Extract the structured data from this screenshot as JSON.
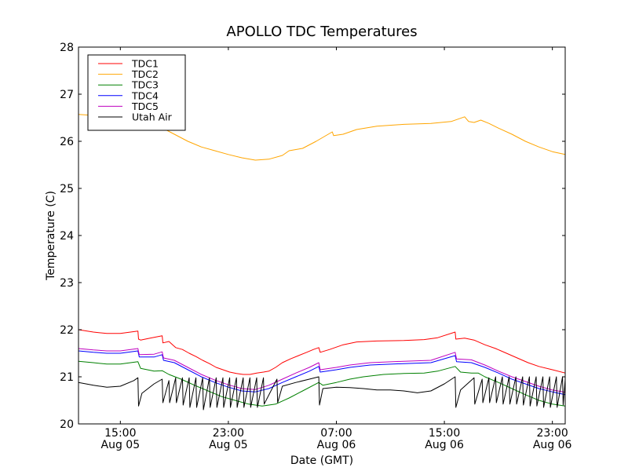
{
  "chart_data": {
    "type": "line",
    "title": "APOLLO TDC Temperatures",
    "xlabel": "Date (GMT)",
    "ylabel": "Temperature (C)",
    "x_units": "hours since 12:00 Aug 05 (GMT)",
    "xlim": [
      -0.1,
      35.95
    ],
    "ylim": [
      20,
      28
    ],
    "yticks": [
      20,
      21,
      22,
      23,
      24,
      25,
      26,
      27,
      28
    ],
    "xticks": [
      {
        "x": 3,
        "time": "15:00",
        "date": "Aug 05"
      },
      {
        "x": 11,
        "time": "23:00",
        "date": "Aug 05"
      },
      {
        "x": 19,
        "time": "07:00",
        "date": "Aug 06"
      },
      {
        "x": 27,
        "time": "15:00",
        "date": "Aug 06"
      },
      {
        "x": 35,
        "time": "23:00",
        "date": "Aug 06"
      }
    ],
    "grid": false,
    "legend_position": "top-left",
    "series": [
      {
        "name": "TDC1",
        "color": "#ff0000",
        "points": [
          [
            -0.1,
            22.0
          ],
          [
            1,
            21.95
          ],
          [
            2,
            21.92
          ],
          [
            3,
            21.92
          ],
          [
            4.3,
            21.97
          ],
          [
            4.35,
            21.8
          ],
          [
            4.5,
            21.78
          ],
          [
            5.2,
            21.82
          ],
          [
            6.1,
            21.87
          ],
          [
            6.15,
            21.72
          ],
          [
            6.6,
            21.75
          ],
          [
            7.1,
            21.62
          ],
          [
            7.6,
            21.58
          ],
          [
            8.1,
            21.5
          ],
          [
            8.6,
            21.43
          ],
          [
            9.1,
            21.35
          ],
          [
            9.6,
            21.28
          ],
          [
            10.1,
            21.2
          ],
          [
            10.6,
            21.15
          ],
          [
            11.1,
            21.1
          ],
          [
            11.6,
            21.07
          ],
          [
            12.1,
            21.05
          ],
          [
            12.6,
            21.05
          ],
          [
            13.1,
            21.08
          ],
          [
            13.6,
            21.1
          ],
          [
            14.0,
            21.12
          ],
          [
            14.5,
            21.2
          ],
          [
            15.0,
            21.3
          ],
          [
            15.6,
            21.38
          ],
          [
            16.2,
            21.45
          ],
          [
            16.8,
            21.52
          ],
          [
            17.3,
            21.58
          ],
          [
            17.7,
            21.62
          ],
          [
            17.8,
            21.52
          ],
          [
            18.5,
            21.58
          ],
          [
            19.5,
            21.68
          ],
          [
            20.5,
            21.74
          ],
          [
            22,
            21.76
          ],
          [
            24,
            21.77
          ],
          [
            25.5,
            21.79
          ],
          [
            26.5,
            21.83
          ],
          [
            27.8,
            21.95
          ],
          [
            27.85,
            21.8
          ],
          [
            28.5,
            21.82
          ],
          [
            29.2,
            21.78
          ],
          [
            30,
            21.68
          ],
          [
            30.8,
            21.6
          ],
          [
            31.6,
            21.5
          ],
          [
            32.4,
            21.4
          ],
          [
            33.2,
            21.3
          ],
          [
            34,
            21.22
          ],
          [
            35,
            21.15
          ],
          [
            35.95,
            21.08
          ]
        ]
      },
      {
        "name": "TDC2",
        "color": "#ffa500",
        "points": [
          [
            -0.1,
            26.57
          ],
          [
            1,
            26.55
          ],
          [
            2,
            26.5
          ],
          [
            3,
            26.45
          ],
          [
            4,
            26.4
          ],
          [
            5,
            26.38
          ],
          [
            6,
            26.3
          ],
          [
            7,
            26.15
          ],
          [
            8,
            26.0
          ],
          [
            9,
            25.88
          ],
          [
            10,
            25.8
          ],
          [
            11,
            25.72
          ],
          [
            12,
            25.65
          ],
          [
            13,
            25.6
          ],
          [
            14,
            25.62
          ],
          [
            15,
            25.7
          ],
          [
            15.5,
            25.8
          ],
          [
            16.5,
            25.85
          ],
          [
            17.5,
            26.0
          ],
          [
            18.7,
            26.2
          ],
          [
            18.8,
            26.12
          ],
          [
            19.5,
            26.15
          ],
          [
            20.5,
            26.25
          ],
          [
            22,
            26.32
          ],
          [
            24,
            26.36
          ],
          [
            26,
            26.38
          ],
          [
            27.5,
            26.42
          ],
          [
            28.5,
            26.52
          ],
          [
            28.8,
            26.42
          ],
          [
            29.2,
            26.4
          ],
          [
            29.7,
            26.45
          ],
          [
            30.3,
            26.38
          ],
          [
            31,
            26.28
          ],
          [
            32,
            26.15
          ],
          [
            33,
            26.0
          ],
          [
            34,
            25.88
          ],
          [
            35,
            25.78
          ],
          [
            35.95,
            25.72
          ]
        ]
      },
      {
        "name": "TDC3",
        "color": "#008000",
        "points": [
          [
            -0.1,
            21.33
          ],
          [
            1,
            21.3
          ],
          [
            2,
            21.27
          ],
          [
            3,
            21.27
          ],
          [
            4.3,
            21.32
          ],
          [
            4.5,
            21.18
          ],
          [
            5.5,
            21.12
          ],
          [
            6.1,
            21.13
          ],
          [
            6.6,
            21.05
          ],
          [
            7.5,
            20.95
          ],
          [
            8.5,
            20.82
          ],
          [
            9.5,
            20.7
          ],
          [
            10.5,
            20.58
          ],
          [
            11.5,
            20.5
          ],
          [
            12.5,
            20.42
          ],
          [
            13.5,
            20.38
          ],
          [
            14.5,
            20.42
          ],
          [
            15.5,
            20.55
          ],
          [
            16.5,
            20.7
          ],
          [
            17.7,
            20.88
          ],
          [
            18,
            20.82
          ],
          [
            19,
            20.88
          ],
          [
            20,
            20.95
          ],
          [
            21,
            21.0
          ],
          [
            22.5,
            21.05
          ],
          [
            24,
            21.07
          ],
          [
            25.5,
            21.08
          ],
          [
            26.5,
            21.12
          ],
          [
            27.8,
            21.22
          ],
          [
            28.2,
            21.1
          ],
          [
            29,
            21.08
          ],
          [
            29.5,
            21.08
          ],
          [
            30,
            21.0
          ],
          [
            31,
            20.88
          ],
          [
            32,
            20.75
          ],
          [
            33,
            20.62
          ],
          [
            34,
            20.5
          ],
          [
            35,
            20.42
          ],
          [
            35.95,
            20.38
          ]
        ]
      },
      {
        "name": "TDC4",
        "color": "#0000ff",
        "points": [
          [
            -0.1,
            21.55
          ],
          [
            1,
            21.52
          ],
          [
            2,
            21.5
          ],
          [
            3,
            21.5
          ],
          [
            4.3,
            21.55
          ],
          [
            4.4,
            21.42
          ],
          [
            5.5,
            21.42
          ],
          [
            6.1,
            21.47
          ],
          [
            6.2,
            21.35
          ],
          [
            7,
            21.3
          ],
          [
            8,
            21.15
          ],
          [
            9,
            21.0
          ],
          [
            10,
            20.88
          ],
          [
            11,
            20.78
          ],
          [
            12,
            20.7
          ],
          [
            13,
            20.68
          ],
          [
            14,
            20.75
          ],
          [
            15,
            20.88
          ],
          [
            16,
            21.0
          ],
          [
            17,
            21.12
          ],
          [
            17.7,
            21.22
          ],
          [
            17.8,
            21.1
          ],
          [
            19,
            21.15
          ],
          [
            20,
            21.2
          ],
          [
            21.5,
            21.25
          ],
          [
            24,
            21.28
          ],
          [
            26,
            21.3
          ],
          [
            27.8,
            21.45
          ],
          [
            27.9,
            21.32
          ],
          [
            29,
            21.3
          ],
          [
            30,
            21.2
          ],
          [
            31,
            21.08
          ],
          [
            32,
            20.95
          ],
          [
            33,
            20.85
          ],
          [
            34,
            20.75
          ],
          [
            35,
            20.68
          ],
          [
            35.95,
            20.62
          ]
        ]
      },
      {
        "name": "TDC5",
        "color": "#bf00bf",
        "points": [
          [
            -0.1,
            21.6
          ],
          [
            1,
            21.57
          ],
          [
            2,
            21.55
          ],
          [
            3,
            21.55
          ],
          [
            4.3,
            21.6
          ],
          [
            4.4,
            21.47
          ],
          [
            5.5,
            21.48
          ],
          [
            6.1,
            21.53
          ],
          [
            6.2,
            21.4
          ],
          [
            7,
            21.35
          ],
          [
            8,
            21.2
          ],
          [
            9,
            21.05
          ],
          [
            10,
            20.93
          ],
          [
            11,
            20.83
          ],
          [
            12,
            20.75
          ],
          [
            13,
            20.73
          ],
          [
            14,
            20.82
          ],
          [
            15,
            20.95
          ],
          [
            16,
            21.08
          ],
          [
            17,
            21.2
          ],
          [
            17.7,
            21.3
          ],
          [
            17.8,
            21.15
          ],
          [
            19,
            21.2
          ],
          [
            20,
            21.25
          ],
          [
            21.5,
            21.3
          ],
          [
            24,
            21.33
          ],
          [
            26,
            21.35
          ],
          [
            27.8,
            21.52
          ],
          [
            27.9,
            21.38
          ],
          [
            29,
            21.36
          ],
          [
            30,
            21.25
          ],
          [
            31,
            21.12
          ],
          [
            32,
            21.0
          ],
          [
            33,
            20.9
          ],
          [
            34,
            20.8
          ],
          [
            35,
            20.72
          ],
          [
            35.95,
            20.67
          ]
        ]
      },
      {
        "name": "Utah Air",
        "color": "#000000",
        "points": [
          [
            -0.1,
            20.88
          ],
          [
            1,
            20.82
          ],
          [
            2,
            20.78
          ],
          [
            3,
            20.8
          ],
          [
            4,
            20.92
          ],
          [
            4.3,
            20.98
          ],
          [
            4.35,
            20.38
          ],
          [
            4.6,
            20.65
          ],
          [
            5.5,
            20.85
          ],
          [
            6.1,
            20.95
          ],
          [
            6.15,
            20.45
          ],
          [
            6.6,
            20.92
          ],
          [
            6.65,
            20.45
          ],
          [
            7.1,
            20.98
          ],
          [
            7.15,
            20.45
          ],
          [
            7.6,
            20.98
          ],
          [
            7.65,
            20.4
          ],
          [
            8.1,
            20.98
          ],
          [
            8.15,
            20.35
          ],
          [
            8.6,
            20.98
          ],
          [
            8.65,
            20.35
          ],
          [
            9.1,
            20.98
          ],
          [
            9.15,
            20.3
          ],
          [
            9.6,
            20.98
          ],
          [
            9.65,
            20.35
          ],
          [
            10.1,
            20.98
          ],
          [
            10.15,
            20.35
          ],
          [
            10.6,
            20.98
          ],
          [
            10.65,
            20.35
          ],
          [
            11.1,
            20.98
          ],
          [
            11.15,
            20.35
          ],
          [
            11.6,
            20.98
          ],
          [
            11.65,
            20.35
          ],
          [
            12.1,
            20.98
          ],
          [
            12.15,
            20.35
          ],
          [
            12.6,
            20.98
          ],
          [
            12.65,
            20.35
          ],
          [
            13.1,
            20.98
          ],
          [
            13.15,
            20.35
          ],
          [
            13.6,
            20.98
          ],
          [
            13.65,
            20.42
          ],
          [
            14.6,
            20.95
          ],
          [
            14.65,
            20.45
          ],
          [
            15.0,
            20.8
          ],
          [
            16,
            20.88
          ],
          [
            17,
            20.95
          ],
          [
            17.7,
            21.0
          ],
          [
            17.75,
            20.4
          ],
          [
            18,
            20.75
          ],
          [
            19,
            20.78
          ],
          [
            20,
            20.77
          ],
          [
            21,
            20.75
          ],
          [
            22,
            20.72
          ],
          [
            23,
            20.72
          ],
          [
            24,
            20.7
          ],
          [
            25,
            20.66
          ],
          [
            26,
            20.7
          ],
          [
            27,
            20.85
          ],
          [
            27.8,
            21.0
          ],
          [
            27.85,
            20.35
          ],
          [
            28.2,
            20.72
          ],
          [
            29.2,
            20.98
          ],
          [
            29.25,
            20.42
          ],
          [
            29.8,
            20.95
          ],
          [
            29.85,
            20.45
          ],
          [
            30.3,
            20.98
          ],
          [
            30.35,
            20.45
          ],
          [
            30.8,
            21.0
          ],
          [
            30.85,
            20.45
          ],
          [
            31.3,
            21.0
          ],
          [
            31.35,
            20.42
          ],
          [
            31.8,
            21.0
          ],
          [
            31.85,
            20.42
          ],
          [
            32.3,
            21.0
          ],
          [
            32.35,
            20.42
          ],
          [
            32.8,
            21.0
          ],
          [
            32.85,
            20.4
          ],
          [
            33.3,
            21.0
          ],
          [
            33.35,
            20.38
          ],
          [
            33.8,
            21.0
          ],
          [
            33.85,
            20.38
          ],
          [
            34.3,
            21.0
          ],
          [
            34.35,
            20.35
          ],
          [
            34.8,
            21.0
          ],
          [
            34.85,
            20.35
          ],
          [
            35.3,
            21.0
          ],
          [
            35.35,
            20.35
          ],
          [
            35.75,
            21.0
          ],
          [
            35.8,
            20.4
          ],
          [
            35.95,
            20.95
          ]
        ]
      }
    ]
  }
}
